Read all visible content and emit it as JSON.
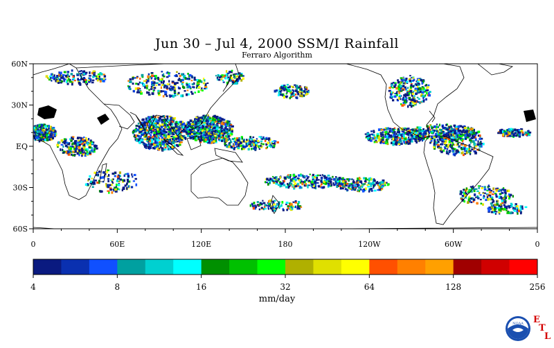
{
  "title": "Jun 30 – Jul 4, 2000 SSM/I Rainfall",
  "subtitle": "Ferraro Algorithm",
  "map": {
    "lat_labels": [
      {
        "label": "60N",
        "lat": 60
      },
      {
        "label": "30N",
        "lat": 30
      },
      {
        "label": "EQ",
        "lat": 0
      },
      {
        "label": "30S",
        "lat": -30
      },
      {
        "label": "60S",
        "lat": -60
      }
    ],
    "lon_labels": [
      {
        "label": "0",
        "lon": 0
      },
      {
        "label": "60E",
        "lon": 60
      },
      {
        "label": "120E",
        "lon": 120
      },
      {
        "label": "180",
        "lon": 180
      },
      {
        "label": "120W",
        "lon": 240
      },
      {
        "label": "60W",
        "lon": 300
      },
      {
        "label": "0",
        "lon": 360
      }
    ]
  },
  "colorbar": {
    "unit": "mm/day",
    "tick_labels": [
      {
        "label": "4",
        "value": 4
      },
      {
        "label": "8",
        "value": 8
      },
      {
        "label": "16",
        "value": 16
      },
      {
        "label": "32",
        "value": 32
      },
      {
        "label": "64",
        "value": 64
      },
      {
        "label": "128",
        "value": 128
      },
      {
        "label": "256",
        "value": 256
      }
    ],
    "colors": [
      "#0a1a80",
      "#0a30b0",
      "#1050ff",
      "#00a0a0",
      "#00d0d0",
      "#00ffff",
      "#009000",
      "#00c000",
      "#00ff00",
      "#b0b000",
      "#e0e000",
      "#ffff00",
      "#ff5000",
      "#ff8000",
      "#ffa000",
      "#a00000",
      "#d00000",
      "#ff0000"
    ]
  },
  "logo": {
    "text": "NOAA",
    "letters": [
      "E",
      "T",
      "L"
    ]
  }
}
